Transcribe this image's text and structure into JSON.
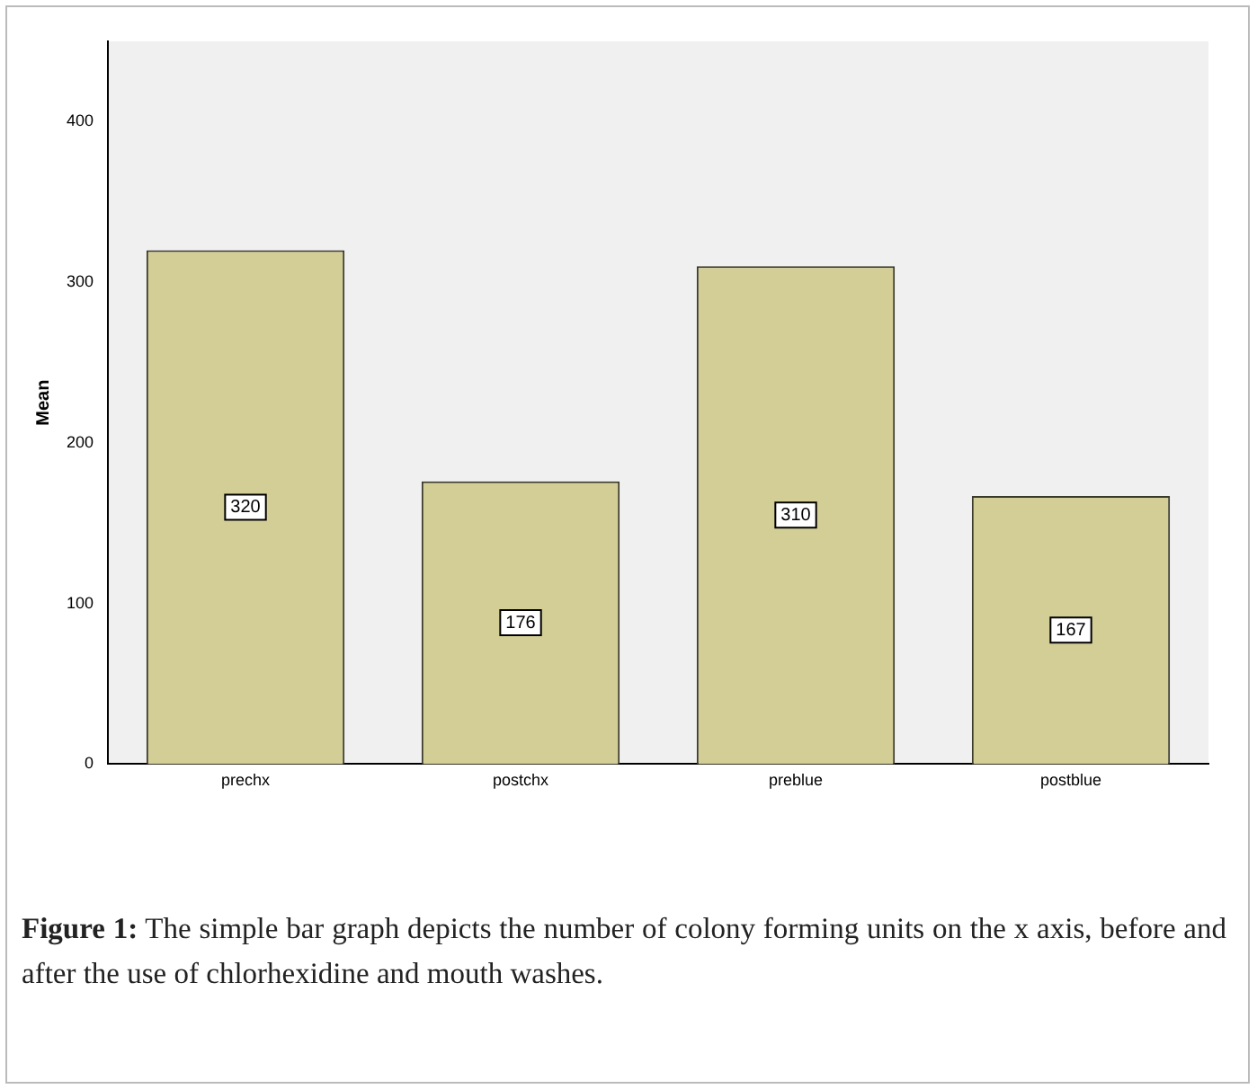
{
  "chart_data": {
    "type": "bar",
    "title": "Figure 1:",
    "annotations": [
      "The simple bar graph depicts the number of colony forming units on the x axis, before and after the use of chlorhexidine and mouth washes."
    ],
    "ylabel": "Mean",
    "categories": [
      "prechx",
      "postchx",
      "preblue",
      "postblue"
    ],
    "values": [
      320,
      176,
      310,
      167
    ],
    "color": "#d3ce96",
    "ylim": [
      0,
      450
    ],
    "yticks": [
      0,
      100,
      200,
      300,
      400
    ],
    "grid": false,
    "data_labels": true
  }
}
